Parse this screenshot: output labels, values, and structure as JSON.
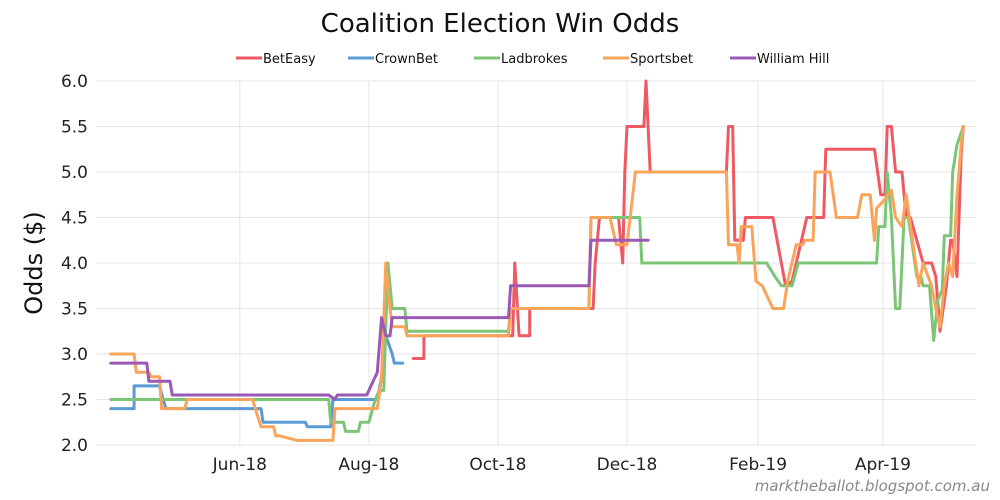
{
  "chart_data": {
    "type": "line",
    "title": "Coalition Election Win Odds",
    "xlabel": "",
    "ylabel": "Odds ($)",
    "ylim": [
      2.0,
      6.0
    ],
    "yticks": [
      {
        "value": 2.0,
        "label": "2.0"
      },
      {
        "value": 2.5,
        "label": "2.5"
      },
      {
        "value": 3.0,
        "label": "3.0"
      },
      {
        "value": 3.5,
        "label": "3.5"
      },
      {
        "value": 4.0,
        "label": "4.0"
      },
      {
        "value": 4.5,
        "label": "4.5"
      },
      {
        "value": 5.0,
        "label": "5.0"
      },
      {
        "value": 5.5,
        "label": "5.5"
      },
      {
        "value": 6.0,
        "label": "6.0"
      }
    ],
    "x_unit": "days since 2018-04-01",
    "xlim": [
      -7,
      409
    ],
    "xticks": [
      {
        "value": 61,
        "label": "Jun-18"
      },
      {
        "value": 122,
        "label": "Aug-18"
      },
      {
        "value": 183,
        "label": "Oct-18"
      },
      {
        "value": 244,
        "label": "Dec-18"
      },
      {
        "value": 306,
        "label": "Feb-19"
      },
      {
        "value": 365,
        "label": "Apr-19"
      }
    ],
    "grid": true,
    "legend_position": "top-center",
    "series": [
      {
        "name": "BetEasy",
        "color": "#ee5a64",
        "points": [
          [
            143,
            2.95
          ],
          [
            148,
            2.95
          ],
          [
            148,
            3.2
          ],
          [
            190,
            3.2
          ],
          [
            191,
            4.0
          ],
          [
            193,
            3.2
          ],
          [
            198,
            3.2
          ],
          [
            198,
            3.5
          ],
          [
            228,
            3.5
          ],
          [
            229,
            4.0
          ],
          [
            231,
            4.5
          ],
          [
            240,
            4.5
          ],
          [
            242,
            4.0
          ],
          [
            243,
            5.0
          ],
          [
            244,
            5.5
          ],
          [
            252,
            5.5
          ],
          [
            253,
            6.0
          ],
          [
            255,
            5.0
          ],
          [
            291,
            5.0
          ],
          [
            292,
            5.5
          ],
          [
            294,
            5.5
          ],
          [
            295,
            4.25
          ],
          [
            299,
            4.25
          ],
          [
            300,
            4.5
          ],
          [
            313,
            4.5
          ],
          [
            319,
            3.75
          ],
          [
            322,
            3.8
          ],
          [
            329,
            4.5
          ],
          [
            337,
            4.5
          ],
          [
            338,
            5.25
          ],
          [
            361,
            5.25
          ],
          [
            364,
            4.75
          ],
          [
            366,
            4.75
          ],
          [
            367,
            5.5
          ],
          [
            369,
            5.5
          ],
          [
            371,
            5.0
          ],
          [
            374,
            5.0
          ],
          [
            376,
            4.5
          ],
          [
            378,
            4.5
          ],
          [
            381,
            4.25
          ],
          [
            384,
            4.0
          ],
          [
            388,
            4.0
          ],
          [
            390,
            3.85
          ],
          [
            392,
            3.25
          ],
          [
            395,
            3.75
          ],
          [
            397,
            4.25
          ],
          [
            398,
            4.25
          ],
          [
            400,
            3.85
          ],
          [
            402,
            5.2
          ],
          [
            403,
            5.5
          ]
        ]
      },
      {
        "name": "CrownBet",
        "color": "#5b9bd5",
        "points": [
          [
            0,
            2.4
          ],
          [
            11,
            2.4
          ],
          [
            11,
            2.65
          ],
          [
            23,
            2.65
          ],
          [
            26,
            2.4
          ],
          [
            71,
            2.4
          ],
          [
            72,
            2.25
          ],
          [
            92,
            2.25
          ],
          [
            93,
            2.2
          ],
          [
            104,
            2.2
          ],
          [
            105,
            2.5
          ],
          [
            126,
            2.5
          ],
          [
            128,
            2.75
          ],
          [
            130,
            3.2
          ],
          [
            133,
            3.0
          ],
          [
            134,
            2.9
          ],
          [
            138,
            2.9
          ]
        ]
      },
      {
        "name": "Ladbrokes",
        "color": "#7cc576",
        "points": [
          [
            0,
            2.5
          ],
          [
            103,
            2.5
          ],
          [
            104,
            2.25
          ],
          [
            110,
            2.25
          ],
          [
            111,
            2.15
          ],
          [
            117,
            2.15
          ],
          [
            118,
            2.25
          ],
          [
            122,
            2.25
          ],
          [
            125,
            2.5
          ],
          [
            127,
            2.6
          ],
          [
            129,
            2.6
          ],
          [
            131,
            4.0
          ],
          [
            133,
            3.5
          ],
          [
            139,
            3.5
          ],
          [
            140,
            3.25
          ],
          [
            188,
            3.25
          ],
          [
            189,
            3.5
          ],
          [
            226,
            3.5
          ],
          [
            227,
            4.5
          ],
          [
            250,
            4.5
          ],
          [
            251,
            4.0
          ],
          [
            310,
            4.0
          ],
          [
            314,
            3.85
          ],
          [
            317,
            3.75
          ],
          [
            322,
            3.75
          ],
          [
            325,
            4.0
          ],
          [
            362,
            4.0
          ],
          [
            363,
            4.4
          ],
          [
            366,
            4.4
          ],
          [
            367,
            5.0
          ],
          [
            369,
            4.5
          ],
          [
            371,
            3.5
          ],
          [
            373,
            3.5
          ],
          [
            375,
            4.5
          ],
          [
            377,
            4.5
          ],
          [
            381,
            3.85
          ],
          [
            383,
            3.85
          ],
          [
            384,
            3.75
          ],
          [
            387,
            3.75
          ],
          [
            389,
            3.15
          ],
          [
            391,
            3.6
          ],
          [
            393,
            3.7
          ],
          [
            394,
            4.3
          ],
          [
            397,
            4.3
          ],
          [
            398,
            5.0
          ],
          [
            400,
            5.3
          ],
          [
            403,
            5.5
          ]
        ]
      },
      {
        "name": "Sportsbet",
        "color": "#f8a45a",
        "points": [
          [
            0,
            3.0
          ],
          [
            11,
            3.0
          ],
          [
            12,
            2.8
          ],
          [
            18,
            2.8
          ],
          [
            19,
            2.75
          ],
          [
            23,
            2.75
          ],
          [
            24,
            2.4
          ],
          [
            35,
            2.4
          ],
          [
            36,
            2.5
          ],
          [
            67,
            2.5
          ],
          [
            71,
            2.2
          ],
          [
            77,
            2.2
          ],
          [
            78,
            2.1
          ],
          [
            80,
            2.1
          ],
          [
            88,
            2.05
          ],
          [
            105,
            2.05
          ],
          [
            106,
            2.4
          ],
          [
            126,
            2.4
          ],
          [
            128,
            2.75
          ],
          [
            130,
            4.0
          ],
          [
            132,
            3.5
          ],
          [
            133,
            3.3
          ],
          [
            139,
            3.3
          ],
          [
            140,
            3.2
          ],
          [
            188,
            3.2
          ],
          [
            189,
            3.5
          ],
          [
            226,
            3.5
          ],
          [
            227,
            4.5
          ],
          [
            236,
            4.5
          ],
          [
            239,
            4.2
          ],
          [
            244,
            4.2
          ],
          [
            248,
            5.0
          ],
          [
            291,
            5.0
          ],
          [
            292,
            4.2
          ],
          [
            296,
            4.2
          ],
          [
            297,
            4.0
          ],
          [
            298,
            4.4
          ],
          [
            303,
            4.4
          ],
          [
            305,
            3.8
          ],
          [
            308,
            3.75
          ],
          [
            313,
            3.5
          ],
          [
            318,
            3.5
          ],
          [
            320,
            3.8
          ],
          [
            324,
            4.2
          ],
          [
            327,
            4.2
          ],
          [
            328,
            4.25
          ],
          [
            332,
            4.25
          ],
          [
            333,
            5.0
          ],
          [
            340,
            5.0
          ],
          [
            343,
            4.5
          ],
          [
            353,
            4.5
          ],
          [
            355,
            4.75
          ],
          [
            359,
            4.75
          ],
          [
            361,
            4.25
          ],
          [
            362,
            4.6
          ],
          [
            366,
            4.7
          ],
          [
            369,
            4.8
          ],
          [
            371,
            4.5
          ],
          [
            374,
            4.4
          ],
          [
            376,
            4.75
          ],
          [
            379,
            4.25
          ],
          [
            382,
            3.75
          ],
          [
            384,
            4.0
          ],
          [
            388,
            3.75
          ],
          [
            390,
            3.5
          ],
          [
            392,
            3.3
          ],
          [
            394,
            3.75
          ],
          [
            396,
            4.0
          ],
          [
            398,
            3.85
          ],
          [
            400,
            4.75
          ],
          [
            402,
            5.3
          ],
          [
            403,
            5.5
          ]
        ]
      },
      {
        "name": "William Hill",
        "color": "#9b59b6",
        "points": [
          [
            0,
            2.9
          ],
          [
            17,
            2.9
          ],
          [
            18,
            2.7
          ],
          [
            28,
            2.7
          ],
          [
            29,
            2.55
          ],
          [
            103,
            2.55
          ],
          [
            106,
            2.5
          ],
          [
            107,
            2.55
          ],
          [
            121,
            2.55
          ],
          [
            126,
            2.8
          ],
          [
            128,
            3.4
          ],
          [
            130,
            3.2
          ],
          [
            132,
            3.2
          ],
          [
            133,
            3.4
          ],
          [
            188,
            3.4
          ],
          [
            189,
            3.75
          ],
          [
            226,
            3.75
          ],
          [
            227,
            4.25
          ],
          [
            245,
            4.25
          ],
          [
            246,
            4.25
          ],
          [
            254,
            4.25
          ]
        ]
      }
    ],
    "annotations": [
      {
        "text": "marktheballot.blogspot.com.au",
        "position": "bottom-right"
      }
    ]
  }
}
